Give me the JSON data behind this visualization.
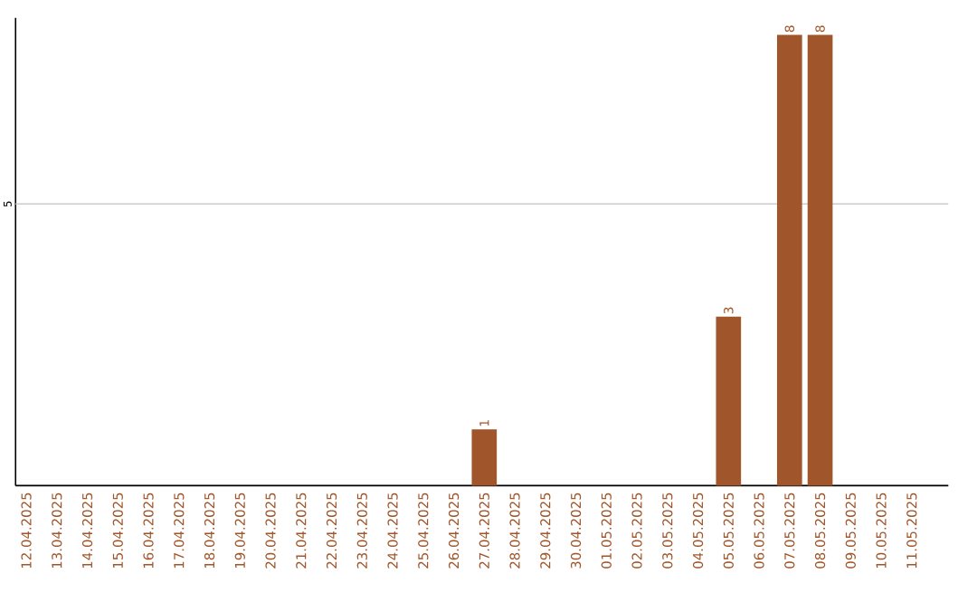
{
  "chart_data": {
    "type": "bar",
    "categories": [
      "12.04.2025",
      "13.04.2025",
      "14.04.2025",
      "15.04.2025",
      "16.04.2025",
      "17.04.2025",
      "18.04.2025",
      "19.04.2025",
      "20.04.2025",
      "21.04.2025",
      "22.04.2025",
      "23.04.2025",
      "24.04.2025",
      "25.04.2025",
      "26.04.2025",
      "27.04.2025",
      "28.04.2025",
      "29.04.2025",
      "30.04.2025",
      "01.05.2025",
      "02.05.2025",
      "03.05.2025",
      "04.05.2025",
      "05.05.2025",
      "06.05.2025",
      "07.05.2025",
      "08.05.2025",
      "09.05.2025",
      "10.05.2025",
      "11.05.2025"
    ],
    "values": [
      null,
      null,
      null,
      null,
      null,
      null,
      null,
      null,
      null,
      null,
      null,
      null,
      null,
      null,
      null,
      1,
      null,
      null,
      null,
      null,
      null,
      null,
      null,
      3,
      null,
      8,
      8,
      null,
      null,
      null
    ],
    "value_labels": [
      null,
      null,
      null,
      null,
      null,
      null,
      null,
      null,
      null,
      null,
      null,
      null,
      null,
      null,
      null,
      "1",
      null,
      null,
      null,
      null,
      null,
      null,
      null,
      "3",
      null,
      "8",
      "8",
      null,
      null,
      null
    ],
    "color": "#a0562a",
    "ylim": [
      0,
      8.3
    ],
    "ref_lines": [
      {
        "axis": "y",
        "value": 5,
        "label": "5",
        "color": "#cccccc"
      }
    ]
  }
}
